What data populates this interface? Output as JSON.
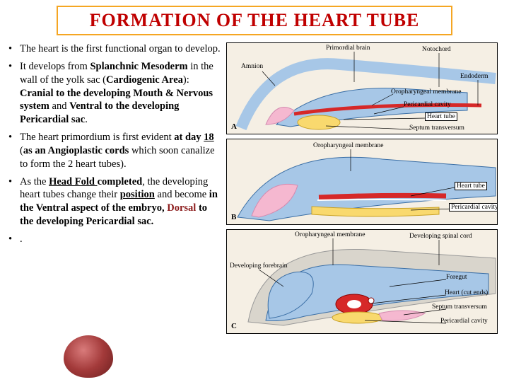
{
  "title": {
    "text": "FORMATION OF THE HEART TUBE",
    "color": "#c00000",
    "fontsize": 26
  },
  "bullets": [
    {
      "parts": [
        {
          "text": "The heart is the first functional organ to develop."
        }
      ]
    },
    {
      "parts": [
        {
          "text": "It develops from "
        },
        {
          "text": "Splanchnic Mesoderm",
          "bold": true,
          "comic": true
        },
        {
          "text": " in the wall of the yolk sac ("
        },
        {
          "text": "Cardiogenic Area",
          "bold": true,
          "comic": true
        },
        {
          "text": "): "
        },
        {
          "text": "Cranial to the developing Mouth & Nervous system",
          "bold": true
        },
        {
          "text": " and "
        },
        {
          "text": "Ventral to the developing Pericardial sac",
          "bold": true
        },
        {
          "text": "."
        }
      ]
    },
    {
      "parts": [
        {
          "text": "The heart primordium is first evident "
        },
        {
          "text": "at day ",
          "bold": true
        },
        {
          "text": "18 ",
          "bold": true,
          "uline": true
        },
        {
          "text": "("
        },
        {
          "text": "as an Angioplastic cords",
          "bold": true
        },
        {
          "text": " which soon canalize to form the 2 heart tubes)."
        }
      ]
    },
    {
      "parts": [
        {
          "text": "As the "
        },
        {
          "text": "Head Fold ",
          "bold": true,
          "uline": true,
          "comic": true
        },
        {
          "text": "completed",
          "bold": true
        },
        {
          "text": ", the developing heart tubes change their "
        },
        {
          "text": "position",
          "bold": true,
          "uline": true
        },
        {
          "text": " and become "
        },
        {
          "text": "in the Ventral aspect of the embryo, ",
          "bold": true
        },
        {
          "text": "Dorsal",
          "bold": true,
          "maroon": true
        },
        {
          "text": " to the developing Pericardial sac.",
          "bold": true
        }
      ]
    },
    {
      "parts": [
        {
          "text": "."
        }
      ]
    }
  ],
  "figures": {
    "a": {
      "panel_label": "A",
      "labels": {
        "amnion": "Amnion",
        "primordial_brain": "Primordial brain",
        "notochord": "Notochord",
        "endoderm": "Endoderm",
        "oropharyngeal": "Oropharyngeal membrane",
        "pericardial": "Pericardial cavity",
        "heart_tube": "Heart tube",
        "septum": "Septum transversum"
      },
      "colors": {
        "bg": "#f5efe4",
        "blue": "#a7c7e7",
        "red": "#d62828",
        "yellow": "#f9d96e",
        "pink": "#f5b8d0"
      }
    },
    "b": {
      "panel_label": "B",
      "labels": {
        "oropharyngeal": "Oropharyngeal membrane",
        "heart_tube": "Heart tube",
        "pericardial": "Pericardial cavity"
      },
      "colors": {
        "bg": "#f5efe4",
        "blue": "#a7c7e7",
        "red": "#d62828",
        "yellow": "#f9d96e",
        "pink": "#f5b8d0"
      }
    },
    "c": {
      "panel_label": "C",
      "labels": {
        "oropharyngeal": "Oropharyngeal membrane",
        "developing_forebrain": "Developing forebrain",
        "developing_spinal": "Developing spinal cord",
        "foregut": "Foregut",
        "heart": "Heart (cut ends)",
        "septum": "Septum transversum",
        "pericardial": "Pericardial cavity"
      },
      "colors": {
        "bg": "#f5efe4",
        "blue": "#a7c7e7",
        "red": "#d62828",
        "yellow": "#f9d96e",
        "pink": "#f5b8d0",
        "grey": "#d9d5cc"
      }
    }
  }
}
